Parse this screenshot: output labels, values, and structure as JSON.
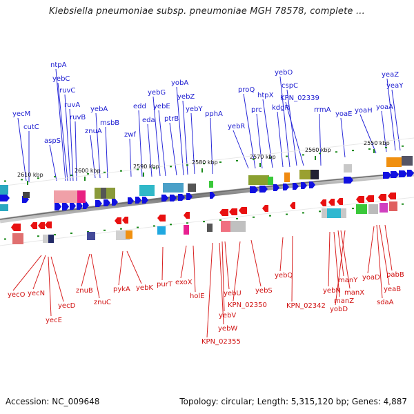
{
  "header": {
    "title": "Klebsiella pneumoniae subsp. pneumoniae MGH 78578, complete ..."
  },
  "footer": {
    "accession": "Accession: NC_009648",
    "topology": "Topology: circular; Length: 5,315,120 bp; Genes: 4,887"
  },
  "colors": {
    "forward": "#1010e0",
    "reverse": "#e81010",
    "backbone": "#888888",
    "tick": "#1a8a1a"
  },
  "ticks": [
    "2610 kbp",
    "2600 kbp",
    "2590 kbp",
    "2580 kbp",
    "2570 kbp",
    "2560 kbp",
    "2550 kbp"
  ],
  "forward_genes": [
    "yecM",
    "cutC",
    "aspS",
    "ntpA",
    "yebC",
    "ruvC",
    "ruvA",
    "ruvB",
    "znuA",
    "yebA",
    "msbB",
    "zwf",
    "edd",
    "eda",
    "yebG",
    "yebE",
    "ptrB",
    "yobA",
    "yebZ",
    "yebY",
    "pphA",
    "yebR",
    "proQ",
    "prc",
    "htpX",
    "kdgR",
    "yebO",
    "cspC",
    "KPN_02339",
    "rrmA",
    "yoaE",
    "yoaH",
    "yoaA",
    "yeaZ",
    "yeaY"
  ],
  "reverse_genes": [
    "yecO",
    "yecN",
    "yecE",
    "yecD",
    "znuB",
    "znuC",
    "pykA",
    "yebK",
    "purT",
    "exoX",
    "holE",
    "yebW",
    "yebV",
    "yebU",
    "KPN_02355",
    "KPN_02350",
    "yebS",
    "yebQ",
    "KPN_02342",
    "yebN",
    "manZ",
    "manY",
    "manX",
    "yobD",
    "yoaD",
    "yeaB",
    "sdaA",
    "pabB"
  ]
}
